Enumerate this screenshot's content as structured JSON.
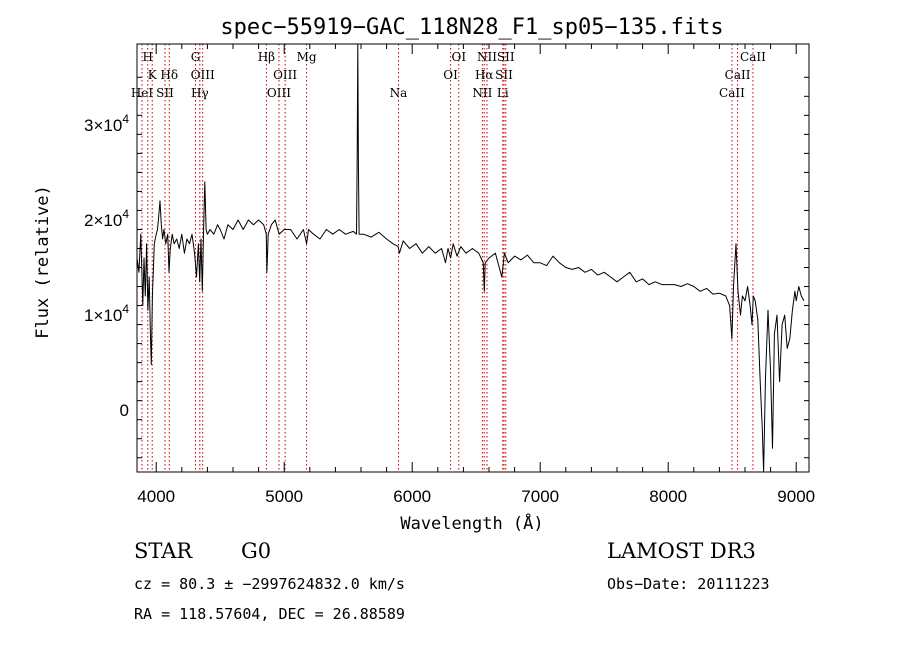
{
  "chart_data": {
    "type": "line",
    "title": "spec−55919−GAC_118N28_F1_sp05−135.fits",
    "xlabel": "Wavelength (Å)",
    "ylabel": "Flux (relative)",
    "xlim": [
      3850,
      9100
    ],
    "ylim": [
      -6500,
      38500
    ],
    "x_ticks": [
      4000,
      5000,
      6000,
      7000,
      8000,
      9000
    ],
    "x_tick_labels": [
      "4000",
      "5000",
      "6000",
      "7000",
      "8000",
      "9000"
    ],
    "y_ticks": [
      0,
      10000,
      20000,
      30000
    ],
    "y_tick_labels": [
      {
        "mantissa": "0",
        "exp": ""
      },
      {
        "mantissa": "1×10",
        "exp": "4"
      },
      {
        "mantissa": "2×10",
        "exp": "4"
      },
      {
        "mantissa": "3×10",
        "exp": "4"
      }
    ],
    "series": [
      {
        "name": "spectrum",
        "points": [
          [
            3850,
            16000
          ],
          [
            3865,
            14500
          ],
          [
            3880,
            18500
          ],
          [
            3895,
            11000
          ],
          [
            3905,
            16000
          ],
          [
            3915,
            12000
          ],
          [
            3925,
            17500
          ],
          [
            3935,
            10500
          ],
          [
            3945,
            14000
          ],
          [
            3955,
            8000
          ],
          [
            3962,
            4800
          ],
          [
            3970,
            12000
          ],
          [
            3985,
            17500
          ],
          [
            4000,
            18500
          ],
          [
            4010,
            19000
          ],
          [
            4020,
            20500
          ],
          [
            4030,
            22000
          ],
          [
            4040,
            19500
          ],
          [
            4050,
            18000
          ],
          [
            4060,
            19000
          ],
          [
            4075,
            17500
          ],
          [
            4090,
            18500
          ],
          [
            4100,
            14500
          ],
          [
            4110,
            17000
          ],
          [
            4125,
            18500
          ],
          [
            4140,
            17500
          ],
          [
            4160,
            18000
          ],
          [
            4180,
            17000
          ],
          [
            4200,
            18500
          ],
          [
            4220,
            16500
          ],
          [
            4240,
            18000
          ],
          [
            4260,
            17500
          ],
          [
            4280,
            18500
          ],
          [
            4300,
            16500
          ],
          [
            4315,
            14000
          ],
          [
            4330,
            17500
          ],
          [
            4340,
            13500
          ],
          [
            4350,
            18000
          ],
          [
            4360,
            12500
          ],
          [
            4370,
            19000
          ],
          [
            4380,
            24000
          ],
          [
            4390,
            19000
          ],
          [
            4400,
            18500
          ],
          [
            4420,
            19000
          ],
          [
            4450,
            18500
          ],
          [
            4480,
            19500
          ],
          [
            4500,
            19000
          ],
          [
            4530,
            18000
          ],
          [
            4560,
            19500
          ],
          [
            4600,
            19000
          ],
          [
            4640,
            20000
          ],
          [
            4680,
            19000
          ],
          [
            4720,
            20000
          ],
          [
            4760,
            19500
          ],
          [
            4800,
            20000
          ],
          [
            4840,
            19500
          ],
          [
            4860,
            18500
          ],
          [
            4865,
            14500
          ],
          [
            4875,
            18500
          ],
          [
            4900,
            19500
          ],
          [
            4930,
            20000
          ],
          [
            4960,
            18500
          ],
          [
            5000,
            19000
          ],
          [
            5050,
            19000
          ],
          [
            5100,
            18000
          ],
          [
            5150,
            19000
          ],
          [
            5175,
            17500
          ],
          [
            5190,
            19000
          ],
          [
            5230,
            18500
          ],
          [
            5280,
            18000
          ],
          [
            5330,
            19000
          ],
          [
            5380,
            18500
          ],
          [
            5430,
            19000
          ],
          [
            5480,
            18500
          ],
          [
            5540,
            18800
          ],
          [
            5565,
            18500
          ],
          [
            5570,
            27000
          ],
          [
            5575,
            38500
          ],
          [
            5580,
            26000
          ],
          [
            5585,
            18500
          ],
          [
            5620,
            18500
          ],
          [
            5680,
            18200
          ],
          [
            5740,
            18700
          ],
          [
            5800,
            18000
          ],
          [
            5850,
            17500
          ],
          [
            5890,
            17200
          ],
          [
            5900,
            16500
          ],
          [
            5930,
            17800
          ],
          [
            5980,
            17000
          ],
          [
            6030,
            17500
          ],
          [
            6080,
            16500
          ],
          [
            6130,
            17200
          ],
          [
            6180,
            16500
          ],
          [
            6230,
            17000
          ],
          [
            6260,
            15500
          ],
          [
            6280,
            17000
          ],
          [
            6300,
            16000
          ],
          [
            6320,
            17500
          ],
          [
            6350,
            16200
          ],
          [
            6380,
            17200
          ],
          [
            6420,
            16500
          ],
          [
            6470,
            17000
          ],
          [
            6520,
            16500
          ],
          [
            6555,
            15500
          ],
          [
            6563,
            12500
          ],
          [
            6570,
            15500
          ],
          [
            6600,
            16000
          ],
          [
            6650,
            16500
          ],
          [
            6700,
            14000
          ],
          [
            6720,
            16500
          ],
          [
            6750,
            15500
          ],
          [
            6800,
            16200
          ],
          [
            6850,
            15800
          ],
          [
            6900,
            16300
          ],
          [
            6950,
            15500
          ],
          [
            7000,
            15500
          ],
          [
            7050,
            15200
          ],
          [
            7100,
            16200
          ],
          [
            7150,
            15500
          ],
          [
            7200,
            15000
          ],
          [
            7250,
            14800
          ],
          [
            7300,
            15000
          ],
          [
            7350,
            14500
          ],
          [
            7400,
            14800
          ],
          [
            7450,
            14200
          ],
          [
            7500,
            14500
          ],
          [
            7550,
            14000
          ],
          [
            7600,
            13500
          ],
          [
            7650,
            14000
          ],
          [
            7700,
            14500
          ],
          [
            7750,
            13500
          ],
          [
            7800,
            13800
          ],
          [
            7850,
            13200
          ],
          [
            7900,
            13500
          ],
          [
            7950,
            13200
          ],
          [
            8000,
            13200
          ],
          [
            8050,
            13200
          ],
          [
            8100,
            13000
          ],
          [
            8150,
            13300
          ],
          [
            8200,
            13000
          ],
          [
            8250,
            12500
          ],
          [
            8300,
            12800
          ],
          [
            8350,
            12200
          ],
          [
            8400,
            12300
          ],
          [
            8450,
            12000
          ],
          [
            8480,
            11000
          ],
          [
            8498,
            7500
          ],
          [
            8510,
            13000
          ],
          [
            8530,
            17500
          ],
          [
            8545,
            12500
          ],
          [
            8565,
            10000
          ],
          [
            8580,
            12000
          ],
          [
            8600,
            11500
          ],
          [
            8620,
            13000
          ],
          [
            8640,
            11000
          ],
          [
            8655,
            9000
          ],
          [
            8665,
            12000
          ],
          [
            8680,
            11500
          ],
          [
            8700,
            9500
          ],
          [
            8720,
            2500
          ],
          [
            8735,
            -2000
          ],
          [
            8745,
            -6500
          ],
          [
            8760,
            3500
          ],
          [
            8780,
            10500
          ],
          [
            8800,
            4000
          ],
          [
            8815,
            -4000
          ],
          [
            8830,
            8000
          ],
          [
            8850,
            10000
          ],
          [
            8870,
            3000
          ],
          [
            8890,
            9000
          ],
          [
            8910,
            10000
          ],
          [
            8930,
            6500
          ],
          [
            8950,
            7500
          ],
          [
            8970,
            10500
          ],
          [
            8990,
            12500
          ],
          [
            9000,
            11500
          ],
          [
            9020,
            13000
          ],
          [
            9040,
            12000
          ],
          [
            9060,
            11500
          ]
        ]
      }
    ],
    "line_labels": [
      {
        "name": "H",
        "x": 3934,
        "row": 0
      },
      {
        "name": "K",
        "x": 3969,
        "row": 1
      },
      {
        "name": "HeI",
        "x": 3889,
        "row": 2
      },
      {
        "name": "SII",
        "x": 4069,
        "row": 2
      },
      {
        "name": "Hδ",
        "x": 4102,
        "row": 1
      },
      {
        "name": "G",
        "x": 4307,
        "row": 0
      },
      {
        "name": "OIII",
        "x": 4363,
        "row": 1
      },
      {
        "name": "Hγ",
        "x": 4341,
        "row": 2
      },
      {
        "name": "Hβ",
        "x": 4861,
        "row": 0
      },
      {
        "name": "OIII",
        "x": 5007,
        "row": 1
      },
      {
        "name": "OIII",
        "x": 4959,
        "row": 2
      },
      {
        "name": "Mg",
        "x": 5175,
        "row": 0
      },
      {
        "name": "Na",
        "x": 5893,
        "row": 2
      },
      {
        "name": "OI",
        "x": 6364,
        "row": 0
      },
      {
        "name": "OI",
        "x": 6300,
        "row": 1
      },
      {
        "name": "NII",
        "x": 6584,
        "row": 0
      },
      {
        "name": "SII",
        "x": 6731,
        "row": 0
      },
      {
        "name": "Hα",
        "x": 6563,
        "row": 1
      },
      {
        "name": "SII",
        "x": 6717,
        "row": 1
      },
      {
        "name": "NII",
        "x": 6548,
        "row": 2
      },
      {
        "name": "Li",
        "x": 6708,
        "row": 2
      },
      {
        "name": "CaII",
        "x": 8662,
        "row": 0
      },
      {
        "name": "CaII",
        "x": 8542,
        "row": 1
      },
      {
        "name": "CaII",
        "x": 8498,
        "row": 2
      }
    ],
    "line_marker_color": "#cc0000",
    "line_color": "#000000"
  },
  "info": {
    "class": "STAR",
    "subclass": "G0",
    "survey": "LAMOST DR3",
    "cz": "cz = 80.3 ± −2997624832.0 km/s",
    "obs_date": "Obs−Date: 20111223",
    "coords": "RA = 118.57604, DEC =  26.88589"
  }
}
